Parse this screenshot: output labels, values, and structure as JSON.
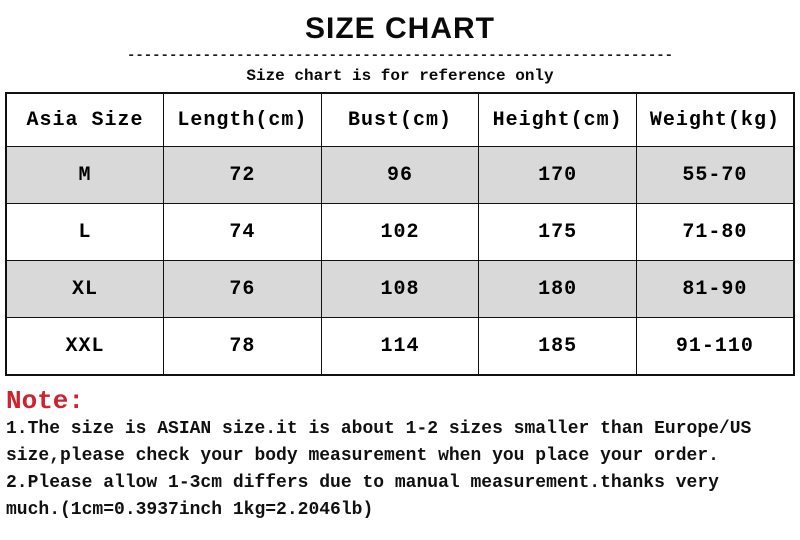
{
  "header": {
    "title": "SIZE CHART",
    "divider_dashes": "-----------------------------------------------------------------",
    "subtitle": "Size chart is for reference only"
  },
  "table": {
    "columns": [
      "Asia Size",
      "Length(cm)",
      "Bust(cm)",
      "Height(cm)",
      "Weight(kg)"
    ],
    "rows": [
      [
        "M",
        "72",
        "96",
        "170",
        "55-70"
      ],
      [
        "L",
        "74",
        "102",
        "175",
        "71-80"
      ],
      [
        "XL",
        "76",
        "108",
        "180",
        "81-90"
      ],
      [
        "XXL",
        "78",
        "114",
        "185",
        "91-110"
      ]
    ]
  },
  "note": {
    "label": "Note:",
    "lines": [
      "1.The size is ASIAN size.it is about 1-2 sizes smaller than Europe/US",
      "size,please check your body measurement when you place your order.",
      "2.Please allow 1-3cm differs due to manual measurement.thanks very",
      "much.(1cm=0.3937inch 1kg=2.2046lb)"
    ]
  },
  "colors": {
    "note_red": "#cd232d",
    "row_alt_gray": "#d9d9d9",
    "text_black": "#0a0a0a"
  }
}
